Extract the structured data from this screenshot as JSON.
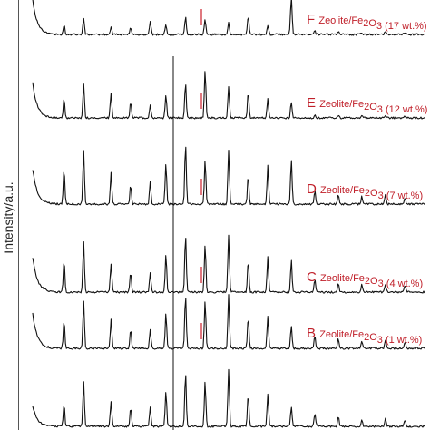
{
  "chart_data": {
    "type": "line",
    "ylabel": "Intensity/a.u.",
    "xlabel": "",
    "title": "",
    "grid": false,
    "legend": "inline labels on each trace",
    "colors": {
      "trace": "#111111",
      "label": "#c0202a",
      "marker": "#d0303a"
    },
    "x_positions_shown": [
      0.08,
      0.13,
      0.2,
      0.25,
      0.3,
      0.34,
      0.39,
      0.44,
      0.5,
      0.55,
      0.6,
      0.66,
      0.72,
      0.78,
      0.84,
      0.9,
      0.95
    ],
    "series": [
      {
        "letter": "F",
        "name": "Zeolite/Fe2O3 (17 wt.%)",
        "label_parts": {
          "pre": "Zeolite/Fe",
          "sub1": "2",
          "mid": "O",
          "sub2": "3",
          "post": " (17 wt.%)"
        },
        "peaks": [
          0.15,
          0.25,
          0.12,
          0.1,
          0.22,
          0.15,
          0.28,
          0.25,
          0.18,
          0.3,
          0.15,
          0.6,
          0.05,
          0.04,
          0.03,
          0.04,
          0.03
        ]
      },
      {
        "letter": "E",
        "name": "Zeolite/Fe2O3 (12 wt.%)",
        "label_parts": {
          "pre": "Zeolite/Fe",
          "sub1": "2",
          "mid": "O",
          "sub2": "3",
          "post": " (12 wt.%)"
        },
        "peaks": [
          0.3,
          0.55,
          0.4,
          0.25,
          0.2,
          0.35,
          0.55,
          0.75,
          0.5,
          0.4,
          0.3,
          0.25,
          0.05,
          0.04,
          0.03,
          0.03,
          0.02
        ]
      },
      {
        "letter": "D",
        "name": "Zeolite/Fe2O3 (7 wt.%)",
        "label_parts": {
          "pre": "Zeolite/Fe",
          "sub1": "2",
          "mid": "O",
          "sub2": "3",
          "post": " (7 wt.%)"
        },
        "peaks": [
          0.55,
          0.85,
          0.5,
          0.3,
          0.35,
          0.65,
          0.95,
          0.7,
          0.85,
          0.45,
          0.6,
          0.7,
          0.2,
          0.15,
          0.12,
          0.15,
          0.1
        ]
      },
      {
        "letter": "C",
        "name": "Zeolite/Fe2O3 (4 wt.%)",
        "label_parts": {
          "pre": "Zeolite/Fe",
          "sub1": "2",
          "mid": "O",
          "sub2": "3",
          "post": " (4 wt.%)"
        },
        "peaks": [
          0.5,
          0.8,
          0.45,
          0.3,
          0.3,
          0.6,
          0.9,
          0.75,
          0.9,
          0.5,
          0.55,
          0.5,
          0.2,
          0.15,
          0.12,
          0.12,
          0.1
        ]
      },
      {
        "letter": "B",
        "name": "Zeolite/Fe2O3 (1 wt.%)",
        "label_parts": {
          "pre": "Zeolite/Fe",
          "sub1": "2",
          "mid": "O",
          "sub2": "3",
          "post": " (1 wt.%)"
        },
        "peaks": [
          0.45,
          0.75,
          0.45,
          0.3,
          0.3,
          0.55,
          0.85,
          0.75,
          0.85,
          0.5,
          0.5,
          0.35,
          0.2,
          0.15,
          0.12,
          0.12,
          0.1
        ]
      },
      {
        "letter": "",
        "name": "",
        "label_parts": null,
        "peaks": [
          0.35,
          0.7,
          0.4,
          0.3,
          0.3,
          0.55,
          0.85,
          0.7,
          0.9,
          0.5,
          0.5,
          0.3,
          0.2,
          0.15,
          0.12,
          0.12,
          0.1
        ]
      }
    ]
  }
}
